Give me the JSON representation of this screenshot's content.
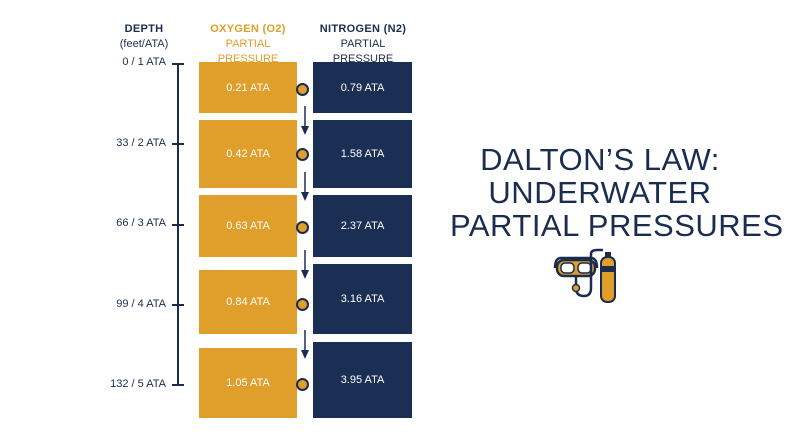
{
  "headers": {
    "depth": {
      "line1": "DEPTH",
      "line2": "(feet/ATA)"
    },
    "oxygen": {
      "line1": "OXYGEN (O2)",
      "line2": "PARTIAL PRESSURE"
    },
    "nitrogen": {
      "line1": "NITROGEN (N2)",
      "line2": "PARTIAL PRESSURE"
    }
  },
  "rows": [
    {
      "depth": "0 / 1 ATA",
      "oxygen": "0.21 ATA",
      "nitrogen": "0.79 ATA"
    },
    {
      "depth": "33 / 2 ATA",
      "oxygen": "0.42 ATA",
      "nitrogen": "1.58 ATA"
    },
    {
      "depth": "66 / 3 ATA",
      "oxygen": "0.63 ATA",
      "nitrogen": "2.37 ATA"
    },
    {
      "depth": "99 / 4 ATA",
      "oxygen": "0.84 ATA",
      "nitrogen": "3.16 ATA"
    },
    {
      "depth": "132 / 5 ATA",
      "oxygen": "1.05 ATA",
      "nitrogen": "3.95 ATA"
    }
  ],
  "title": {
    "line1": "DALTON’S LAW:",
    "line2": "UNDERWATER",
    "line3": "PARTIAL PRESSURES"
  },
  "icons": {
    "diver": "scuba-mask-and-tank-icon",
    "arrow": "arrow-down-icon"
  },
  "colors": {
    "oxygen": "#e09e2a",
    "nitrogen": "#1a2f53",
    "text": "#1b2d4f"
  }
}
